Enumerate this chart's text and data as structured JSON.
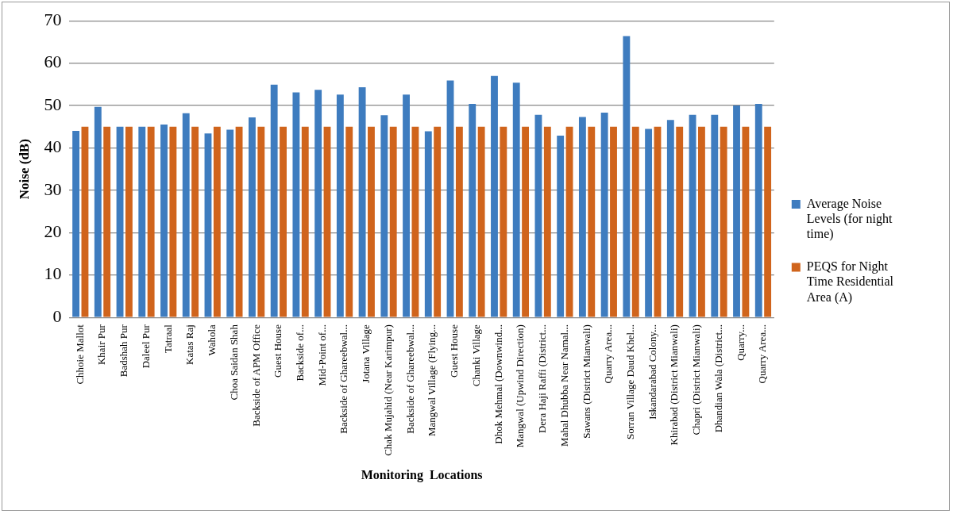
{
  "chart_data": {
    "type": "bar",
    "xlabel": "Monitoring  Locations",
    "ylabel": "Noise (dB)",
    "categories": [
      "Chhoie Mallot",
      "Khair Pur",
      "Badshah Pur",
      "Daleel Pur",
      "Tatraal",
      "Katas Raj",
      "Wahola",
      "Choa Saidan Shah",
      "Backside of APM Office",
      "Guest House",
      "Backside of...",
      "Mid-Point of...",
      "Backside of Ghareebwal...",
      "Jotana Village",
      "Chak Mujahid (Near Karimpur)",
      "Backside of Ghareebwal...",
      "Mangwal Village (Flying...",
      "Guest House",
      "Chanki Village",
      "Dhok Mehmal (Downwind...",
      "Mangwal (Upwind Direction)",
      "Dera Haji Raffi (District...",
      "Mahal Dhubba Near Namal...",
      "Sawans (District Mianwali)",
      "Quarry Area...",
      "Sorran Village Daud Khel...",
      "Iskandarabad Colony...",
      "Khirabad (District Mianwali)",
      "Chapri (District Mianwali)",
      "Dhandian Wala (District...",
      "Quarry...",
      "Quarry Area..."
    ],
    "series": [
      {
        "name": "Average Noise Levels (for night time)",
        "color": "#3e7cbf",
        "values": [
          44,
          49.7,
          45,
          45,
          45.5,
          48.2,
          43.4,
          44.3,
          47.2,
          54.9,
          53.1,
          53.7,
          52.6,
          54.3,
          47.7,
          52.6,
          43.9,
          55.9,
          50.4,
          57,
          55.4,
          47.8,
          42.9,
          47.3,
          48.3,
          66.4,
          44.5,
          46.6,
          47.8,
          47.8,
          50,
          50.4
        ]
      },
      {
        "name": "PEQS for Night Time Residential Area (A)",
        "color": "#d0641c",
        "values": [
          45,
          45,
          45,
          45,
          45,
          45,
          45,
          45,
          45,
          45,
          45,
          45,
          45,
          45,
          45,
          45,
          45,
          45,
          45,
          45,
          45,
          45,
          45,
          45,
          45,
          45,
          45,
          45,
          45,
          45,
          45,
          45
        ]
      }
    ],
    "ylim": [
      0,
      70
    ],
    "yticks": [
      0,
      10,
      20,
      30,
      40,
      50,
      60,
      70
    ],
    "grid": "y",
    "legend": "right"
  }
}
